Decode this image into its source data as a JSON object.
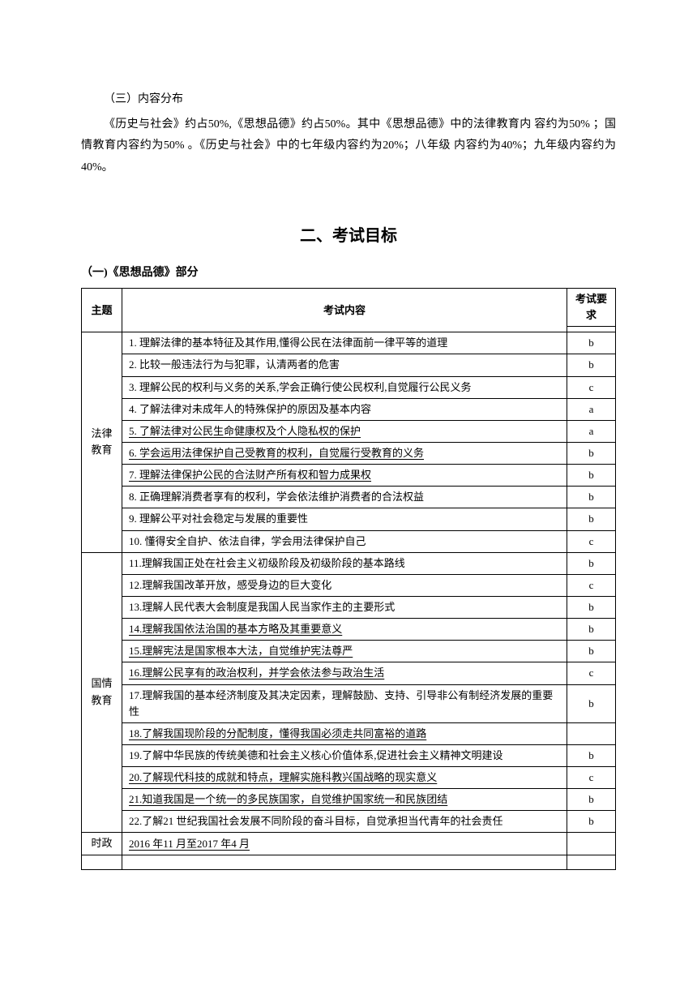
{
  "section3": {
    "heading": "（三）内容分布",
    "body": "《历史与社会》约占50%,《思想品德》约占50%。其中《思想品德》中的法律教育内 容约为50% ；国情教育内容约为50% 。《历史与社会》中的七年级内容约为20%；八年级 内容约为40%；九年级内容约为40%。"
  },
  "mainTitle": "二、考试目标",
  "subHeading": "（一)《思想品德》部分",
  "tableHeaders": {
    "theme": "主题",
    "content": "考试内容",
    "requirement": "考试要求"
  },
  "themes": {
    "law": "法律\n教育",
    "national": "国情\n教育",
    "politics": "时政"
  },
  "lawRows": [
    {
      "content": "1. 理解法律的基本特征及其作用,懂得公民在法律面前一律平等的道理",
      "req": "b"
    },
    {
      "content": "2. 比较一般违法行为与犯罪，认清两者的危害",
      "req": "b"
    },
    {
      "content": "3. 理解公民的权利与义务的关系,学会正确行使公民权利,自觉履行公民义务",
      "req": "c"
    },
    {
      "content": "4. 了解法律对未成年人的特殊保护的原因及基本内容",
      "req": "a"
    },
    {
      "content": "5. 了解法律对公民生命健康权及个人隐私权的保护",
      "req": "a",
      "underline": true
    },
    {
      "content": "6. 学会运用法律保护自己受教育的权利，自觉履行受教育的义务",
      "req": "b",
      "underline": true
    },
    {
      "content": "7. 理解法律保护公民的合法财产所有权和智力成果权",
      "req": "b",
      "underline": true
    },
    {
      "content": "8. 正确理解消费者享有的权利，学会依法维护消费者的合法权益",
      "req": "b"
    },
    {
      "content": "9. 理解公平对社会稳定与发展的重要性",
      "req": "b"
    },
    {
      "content": "10. 懂得安全自护、依法自律，学会用法律保护自己",
      "req": "c"
    }
  ],
  "nationalRows": [
    {
      "content": "11.理解我国正处在社会主义初级阶段及初级阶段的基本路线",
      "req": "b"
    },
    {
      "content": "12.理解我国改革开放，感受身边的巨大变化",
      "req": "c"
    },
    {
      "content": "13.理解人民代表大会制度是我国人民当家作主的主要形式",
      "req": "b"
    },
    {
      "content": "14.理解我国依法治国的基本方略及其重要意义",
      "req": "b",
      "underline": true
    },
    {
      "content": "15.理解宪法是国家根本大法，自觉维护宪法尊严",
      "req": "b",
      "underline": true
    },
    {
      "content": "16.理解公民享有的政治权利，并学会依法参与政治生活",
      "req": "c",
      "underline": true
    },
    {
      "content": "17.理解我国的基本经济制度及其决定因素，理解鼓励、支持、引导非公有制经济发展的重要性",
      "req": "b"
    },
    {
      "content": "18.了解我国现阶段的分配制度，懂得我国必须走共同富裕的道路",
      "req": "",
      "underline": true
    },
    {
      "content": "19.了解中华民族的传统美德和社会主义核心价值体系,促进社会主义精神文明建设",
      "req": "b"
    },
    {
      "content": "20.了解现代科技的成就和特点，理解实施科教兴国战略的现实意义",
      "req": "c",
      "underline": true
    },
    {
      "content": "21.知道我国是一个统一的多民族国家，自觉维护国家统一和民族团结",
      "req": "b",
      "underline": true
    },
    {
      "content": "22.了解21 世纪我国社会发展不同阶段的奋斗目标，自觉承担当代青年的社会责任",
      "req": "b"
    }
  ],
  "politicsRow": {
    "content": "2016 年11 月至2017 年4 月",
    "req": "",
    "underline": true
  },
  "colors": {
    "text": "#000000",
    "background": "#ffffff",
    "border": "#000000"
  },
  "fonts": {
    "body": "SimSun",
    "title": "SimHei",
    "bodySize": 14,
    "titleSize": 20,
    "tableSize": 13
  }
}
